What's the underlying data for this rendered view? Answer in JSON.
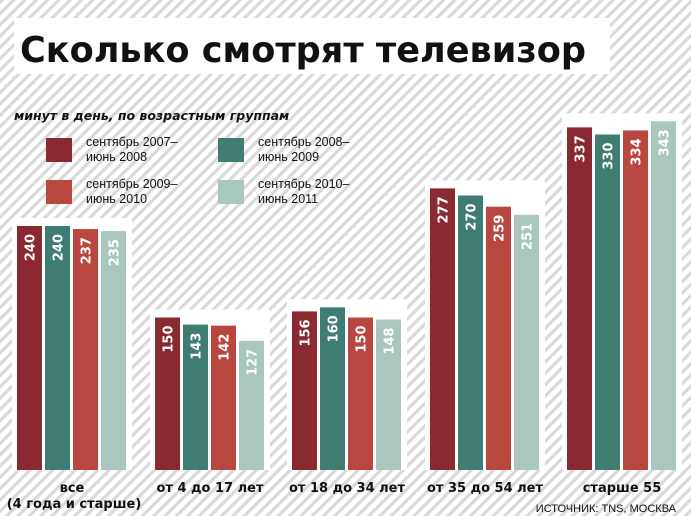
{
  "chart_data": {
    "type": "bar",
    "title": "Сколько смотрят телевизор",
    "subtitle": "минут в день, по возрастным группам",
    "categories": [
      "все",
      "от 4 до 17 лет",
      "от 18 до 34 лет",
      "от 35 до 54 лет",
      "старше 55"
    ],
    "category_sublabels": [
      "(4 года и старше)",
      "",
      "",
      "",
      ""
    ],
    "series": [
      {
        "name": "сентябрь 2007– июнь 2008",
        "legend_lines": [
          "сентябрь 2007–",
          "июнь 2008"
        ],
        "color": "#8a2a30",
        "values": [
          240,
          150,
          156,
          277,
          337
        ]
      },
      {
        "name": "сентябрь 2008– июнь 2009",
        "legend_lines": [
          "сентябрь 2008–",
          "июнь 2009"
        ],
        "color": "#3f7d72",
        "values": [
          240,
          143,
          160,
          270,
          330
        ]
      },
      {
        "name": "сентябрь 2009– июнь 2010",
        "legend_lines": [
          "сентябрь 2009–",
          "июнь 2010"
        ],
        "color": "#b8473f",
        "values": [
          237,
          142,
          150,
          259,
          334
        ]
      },
      {
        "name": "сентябрь 2010– июнь 2011",
        "legend_lines": [
          "сентябрь 2010–",
          "июнь 2011"
        ],
        "color": "#a9c7be",
        "values": [
          235,
          127,
          148,
          251,
          343
        ]
      }
    ],
    "ylim": [
      0,
      360
    ],
    "grid": false,
    "legend": "top-left",
    "source": "ИСТОЧНИК: TNS, МОСКВА"
  },
  "colors": {
    "background_stripes": "#d9d9d9",
    "value_text": "#ffffff",
    "text": "#111111"
  }
}
